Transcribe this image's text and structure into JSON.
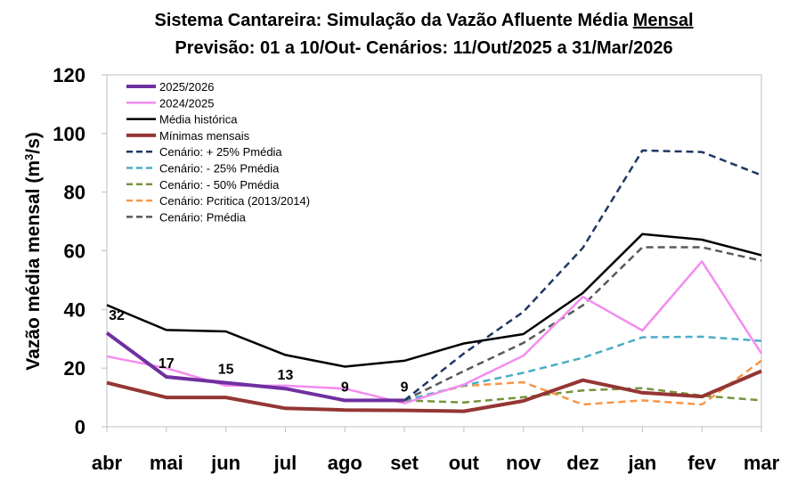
{
  "chart_data": {
    "type": "line",
    "title": "Sistema Cantareira: Simulação da Vazão Afluente Média Mensal",
    "title_underlined_word": "Mensal",
    "subtitle": "Previsão: 01 a 10/Out- Cenários: 11/Out/2025 a 31/Mar/2026",
    "ylabel": "Vazão média mensal (m³/s)",
    "xlabel": "",
    "categories": [
      "abr",
      "mai",
      "jun",
      "jul",
      "ago",
      "set",
      "out",
      "nov",
      "dez",
      "jan",
      "fev",
      "mar"
    ],
    "ylim": [
      0,
      120
    ],
    "yticks": [
      0,
      20,
      40,
      60,
      80,
      100,
      120
    ],
    "grid": false,
    "legend_position": "top-left",
    "series": [
      {
        "name": "2025/2026",
        "color": "#7030A0",
        "dash": false,
        "width": 4,
        "values": [
          32,
          17,
          15,
          13,
          9,
          9,
          null,
          null,
          null,
          null,
          null,
          null
        ],
        "data_labels": [
          "32",
          "17",
          "15",
          "13",
          "9",
          "9"
        ]
      },
      {
        "name": "2024/2025",
        "color": "#F48CF0",
        "dash": false,
        "width": 2.5,
        "values": [
          24,
          20,
          14,
          14,
          13,
          8,
          14.4,
          24.2,
          44.3,
          32.8,
          56.4,
          25
        ]
      },
      {
        "name": "Média histórica",
        "color": "#000000",
        "dash": false,
        "width": 2.5,
        "values": [
          41.5,
          33,
          32.5,
          24.5,
          20.5,
          22.5,
          28.4,
          31.6,
          45.6,
          65.7,
          63.8,
          58.5
        ]
      },
      {
        "name": "Mínimas mensais",
        "color": "#943634",
        "dash": false,
        "width": 4,
        "values": [
          15,
          10,
          10,
          6.3,
          5.7,
          5.6,
          5.3,
          8.8,
          15.9,
          11.6,
          10.3,
          19
        ]
      },
      {
        "name": "Cenário: + 25% Pmédia",
        "color": "#1F3864",
        "dash": true,
        "width": 2.5,
        "values": [
          null,
          null,
          null,
          null,
          null,
          9,
          25,
          39.2,
          61,
          94.2,
          93.7,
          85.8
        ]
      },
      {
        "name": "Cenário: - 25% Pmédia",
        "color": "#4BACC6",
        "dash": true,
        "width": 2.5,
        "values": [
          null,
          null,
          null,
          null,
          null,
          9,
          14.1,
          18.4,
          23.5,
          30.5,
          30.7,
          29.3
        ]
      },
      {
        "name": "Cenário: - 50% Pmédia",
        "color": "#77933C",
        "dash": true,
        "width": 2.5,
        "values": [
          null,
          null,
          null,
          null,
          null,
          9,
          8.3,
          10.1,
          12.4,
          13.2,
          10.6,
          9
        ]
      },
      {
        "name": "Cenário: Pcritica (2013/2014)",
        "color": "#F79646",
        "dash": true,
        "width": 2.5,
        "values": [
          null,
          null,
          null,
          null,
          null,
          9,
          13.9,
          15.2,
          7.6,
          9,
          7.6,
          22.5
        ]
      },
      {
        "name": "Cenário: Pmédia",
        "color": "#595959",
        "dash": true,
        "width": 2.5,
        "values": [
          null,
          null,
          null,
          null,
          null,
          9,
          19,
          28.6,
          41.4,
          61.2,
          61.2,
          56.6
        ]
      }
    ]
  }
}
